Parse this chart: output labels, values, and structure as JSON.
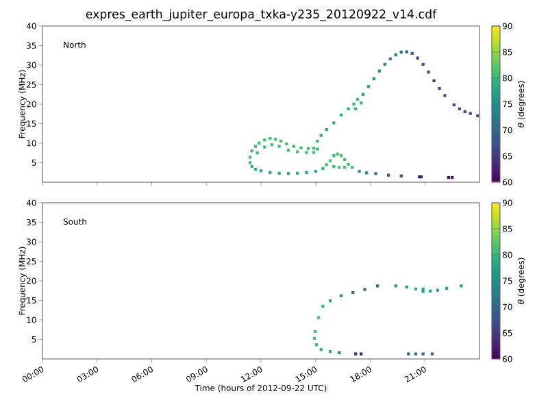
{
  "chart_data": [
    {
      "type": "scatter",
      "title": "expres_earth_jupiter_europa_txka-y235_20120922_v14.cdf",
      "ylabel": "Frequency (MHz)",
      "clabel": "*θ* (degrees)",
      "annotations": [
        "North"
      ],
      "marker": "square",
      "tick_labels": "y",
      "xlim": [
        0,
        24
      ],
      "ylim": [
        0,
        40
      ],
      "yticks": [
        5,
        10,
        15,
        20,
        25,
        30,
        35,
        40
      ],
      "xticks": [
        {
          "value": 0,
          "label": null
        },
        {
          "value": 3,
          "label": null
        },
        {
          "value": 6,
          "label": null
        },
        {
          "value": 9,
          "label": null
        },
        {
          "value": 12,
          "label": null
        },
        {
          "value": 15,
          "label": null
        },
        {
          "value": 18,
          "label": null
        },
        {
          "value": 21,
          "label": null
        }
      ],
      "clim": [
        60,
        90
      ],
      "cticks": [
        60,
        65,
        70,
        75,
        80,
        85,
        90
      ],
      "x": [
        11.4,
        11.4,
        11.5,
        11.7,
        11.9,
        12.2,
        12.5,
        12.8,
        13.1,
        13.4,
        13.8,
        14.2,
        14.6,
        14.9,
        11.8,
        12.2,
        12.6,
        13.0,
        13.5,
        14.0,
        14.5,
        14.9,
        15.1,
        15.1,
        15.3,
        15.6,
        16.0,
        16.4,
        16.8,
        17.1,
        17.3,
        17.6,
        17.9,
        18.2,
        18.5,
        18.8,
        19.1,
        19.4,
        19.7,
        20.0,
        20.3,
        20.6,
        20.9,
        21.2,
        21.5,
        21.8,
        22.1,
        22.6,
        22.9,
        23.2,
        23.5,
        23.9,
        17.2,
        17.5,
        11.5,
        11.7,
        12.0,
        12.5,
        13.0,
        13.5,
        14.0,
        14.5,
        15.0,
        15.4,
        15.6,
        15.8,
        16.0,
        16.2,
        16.4,
        16.6,
        16.8,
        17.0,
        16.0,
        16.3,
        16.6,
        17.4,
        17.8,
        18.3,
        19.0,
        19.7,
        20.7,
        20.8,
        22.3,
        22.5
      ],
      "values": [
        6.4,
        5.0,
        8.0,
        9.2,
        10.0,
        10.8,
        11.2,
        11.0,
        10.5,
        9.8,
        9.2,
        8.8,
        8.6,
        8.7,
        7.5,
        9.0,
        9.6,
        9.2,
        8.2,
        7.8,
        7.6,
        7.6,
        8.5,
        10.5,
        12.0,
        13.5,
        15.2,
        17.2,
        18.8,
        20.0,
        21.2,
        22.5,
        24.5,
        26.5,
        28.5,
        30.2,
        31.6,
        32.6,
        33.3,
        33.4,
        33.0,
        31.8,
        30.2,
        28.2,
        26.0,
        24.0,
        22.2,
        19.8,
        18.8,
        18.1,
        17.6,
        17.0,
        18.8,
        20.3,
        4.0,
        3.3,
        2.9,
        2.5,
        2.3,
        2.2,
        2.3,
        2.5,
        2.8,
        3.5,
        4.5,
        5.5,
        6.8,
        7.2,
        6.8,
        5.8,
        4.6,
        3.8,
        4.0,
        3.8,
        3.8,
        2.8,
        2.4,
        2.2,
        1.8,
        1.6,
        1.4,
        1.4,
        1.2,
        1.2
      ],
      "cvalues": [
        81,
        81,
        81,
        81,
        81,
        81,
        81,
        81,
        81,
        81,
        81,
        81,
        81,
        81,
        81,
        81,
        81,
        81,
        81,
        81,
        81,
        81,
        80,
        80,
        79,
        79,
        79,
        79,
        80,
        80,
        80,
        78,
        77,
        76,
        75,
        74,
        73,
        72,
        71,
        70,
        69,
        68,
        67,
        67,
        67,
        67,
        67,
        67,
        67,
        67,
        67,
        67,
        80,
        80,
        80,
        79,
        78,
        78,
        78,
        78,
        78,
        78,
        78,
        80,
        81,
        81,
        81,
        81,
        81,
        81,
        81,
        80,
        81,
        81,
        81,
        77,
        75,
        72,
        68,
        66,
        62,
        62,
        61,
        61
      ]
    },
    {
      "type": "scatter",
      "xlabel": "Time (hours of 2012-09-22 UTC)",
      "ylabel": "Frequency (MHz)",
      "clabel": "*θ* (degrees)",
      "annotations": [
        "South"
      ],
      "marker": "square",
      "xlim": [
        0,
        24
      ],
      "ylim": [
        0,
        40
      ],
      "yticks": [
        5,
        10,
        15,
        20,
        25,
        30,
        35,
        40
      ],
      "xticks": [
        {
          "value": 0,
          "label": "00:00"
        },
        {
          "value": 3,
          "label": "03:00"
        },
        {
          "value": 6,
          "label": "06:00"
        },
        {
          "value": 9,
          "label": "09:00"
        },
        {
          "value": 12,
          "label": "12:00"
        },
        {
          "value": 15,
          "label": "15:00"
        },
        {
          "value": 18,
          "label": "18:00"
        },
        {
          "value": 21,
          "label": "21:00"
        }
      ],
      "clim": [
        60,
        90
      ],
      "cticks": [
        60,
        65,
        70,
        75,
        80,
        85,
        90
      ],
      "x": [
        14.93,
        14.98,
        15.17,
        15.4,
        15.8,
        16.4,
        17.05,
        17.7,
        18.4,
        15.05,
        15.3,
        15.8,
        16.3,
        17.2,
        17.5,
        20.1,
        20.5,
        20.9,
        21.4,
        19.4,
        20.0,
        20.5,
        20.9,
        21.3,
        21.7,
        22.2,
        23.0,
        20.9
      ],
      "values": [
        5.3,
        7.0,
        10.6,
        13.5,
        14.9,
        16.2,
        17.0,
        17.8,
        18.7,
        3.6,
        2.4,
        1.9,
        1.6,
        1.3,
        1.3,
        1.3,
        1.3,
        1.3,
        1.3,
        18.7,
        18.4,
        17.9,
        17.3,
        17.4,
        17.6,
        18.1,
        18.7,
        17.9
      ],
      "cvalues": [
        81,
        81,
        81,
        80,
        78,
        74,
        71,
        70,
        70,
        80,
        79,
        78,
        72,
        63,
        63,
        70,
        70,
        70,
        70,
        77,
        77,
        78,
        78,
        78,
        77,
        77,
        77,
        78
      ]
    }
  ]
}
